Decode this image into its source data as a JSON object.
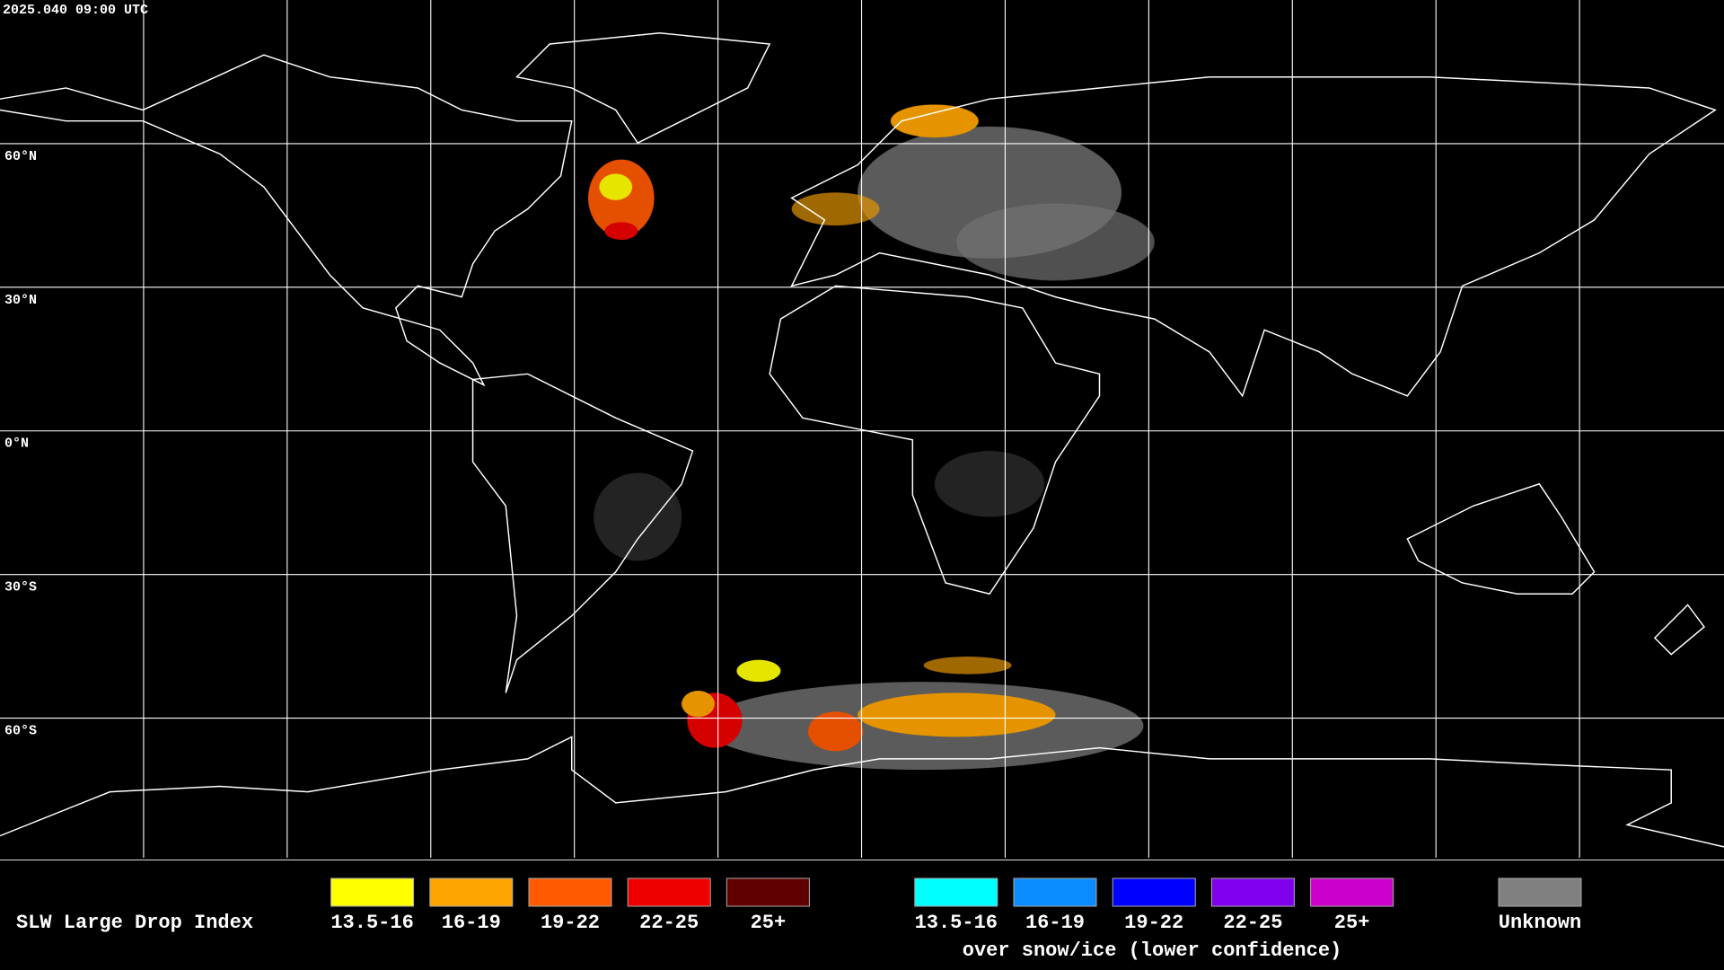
{
  "timestamp": "2025.040 09:00 UTC",
  "lat_labels": [
    "60°N",
    "30°N",
    "0°N",
    "30°S",
    "60°S"
  ],
  "legend": {
    "title": "SLW Large Drop Index",
    "items": [
      {
        "label": "13.5-16",
        "color": "#ffff00"
      },
      {
        "label": "16-19",
        "color": "#ffa500"
      },
      {
        "label": "19-22",
        "color": "#ff5a00"
      },
      {
        "label": "22-25",
        "color": "#ee0000"
      },
      {
        "label": "25+",
        "color": "#600000"
      }
    ],
    "snow_items": [
      {
        "label": "13.5-16",
        "color": "#00ffff"
      },
      {
        "label": "16-19",
        "color": "#0a8cff"
      },
      {
        "label": "19-22",
        "color": "#0000ff"
      },
      {
        "label": "22-25",
        "color": "#8000ee"
      },
      {
        "label": "25+",
        "color": "#cc00cc"
      }
    ],
    "snow_caption": "over snow/ice (lower confidence)",
    "unknown": {
      "label": "Unknown",
      "color": "#808080"
    }
  }
}
